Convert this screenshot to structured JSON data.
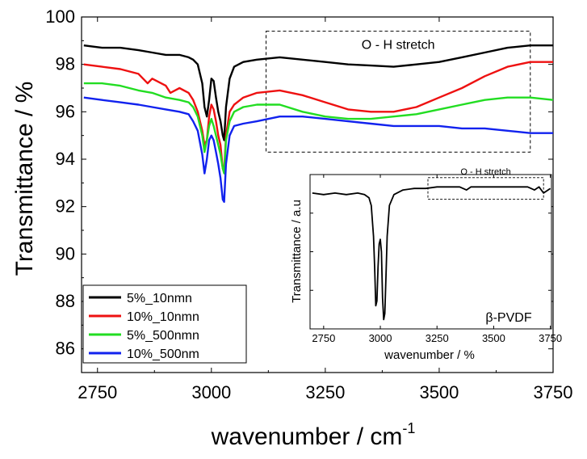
{
  "chart_data": [
    {
      "type": "line",
      "id": "main",
      "title": "",
      "xlabel": "wavenumber / cm",
      "xlabel_superscript": "-1",
      "ylabel": "Transmittance / %",
      "xlim": [
        2715,
        3750
      ],
      "ylim": [
        85,
        100
      ],
      "xticks": [
        "2750",
        "3000",
        "3250",
        "3500",
        "3750"
      ],
      "yticks": [
        "86",
        "88",
        "90",
        "92",
        "94",
        "96",
        "98",
        "100"
      ],
      "legend_position": "bottom-left",
      "annotation": {
        "text": "O - H stretch",
        "region_x": [
          3120,
          3700
        ],
        "region_y": [
          94.3,
          99.4
        ]
      },
      "series": [
        {
          "name": "5%_10nmn",
          "color": "#000000",
          "x": [
            2720,
            2760,
            2800,
            2840,
            2870,
            2900,
            2930,
            2950,
            2960,
            2970,
            2980,
            2985,
            2990,
            2995,
            3000,
            3005,
            3010,
            3015,
            3020,
            3025,
            3028,
            3032,
            3040,
            3050,
            3070,
            3100,
            3150,
            3200,
            3250,
            3300,
            3350,
            3400,
            3450,
            3500,
            3550,
            3600,
            3650,
            3700,
            3750
          ],
          "y": [
            98.8,
            98.7,
            98.7,
            98.6,
            98.5,
            98.4,
            98.4,
            98.3,
            98.2,
            98.0,
            97.2,
            96.2,
            95.8,
            96.5,
            97.4,
            97.3,
            96.6,
            96.0,
            95.6,
            95.0,
            94.8,
            96.2,
            97.4,
            97.9,
            98.1,
            98.2,
            98.3,
            98.2,
            98.1,
            98.0,
            97.95,
            97.9,
            98.0,
            98.1,
            98.3,
            98.5,
            98.7,
            98.8,
            98.8
          ]
        },
        {
          "name": "10%_10nmn",
          "color": "#ee1111",
          "x": [
            2720,
            2760,
            2800,
            2840,
            2850,
            2860,
            2870,
            2900,
            2910,
            2920,
            2930,
            2950,
            2960,
            2970,
            2980,
            2985,
            2990,
            2995,
            3000,
            3005,
            3010,
            3015,
            3020,
            3025,
            3028,
            3032,
            3040,
            3050,
            3070,
            3100,
            3150,
            3200,
            3250,
            3300,
            3350,
            3400,
            3450,
            3500,
            3550,
            3600,
            3650,
            3700,
            3750
          ],
          "y": [
            98.0,
            97.9,
            97.8,
            97.6,
            97.4,
            97.2,
            97.4,
            97.1,
            96.8,
            96.9,
            97.0,
            96.8,
            96.5,
            96.0,
            95.2,
            94.6,
            94.8,
            95.8,
            96.3,
            96.1,
            95.6,
            95.0,
            94.6,
            93.6,
            93.5,
            95.0,
            96.0,
            96.3,
            96.6,
            96.8,
            96.9,
            96.7,
            96.4,
            96.1,
            96.0,
            96.0,
            96.2,
            96.6,
            97.0,
            97.5,
            97.9,
            98.1,
            98.1
          ]
        },
        {
          "name": "5%_500nmn",
          "color": "#22dd22",
          "x": [
            2720,
            2760,
            2800,
            2840,
            2870,
            2900,
            2930,
            2950,
            2960,
            2970,
            2980,
            2985,
            2990,
            2995,
            3000,
            3005,
            3010,
            3015,
            3020,
            3025,
            3028,
            3032,
            3040,
            3050,
            3070,
            3100,
            3150,
            3200,
            3250,
            3300,
            3350,
            3400,
            3450,
            3500,
            3550,
            3600,
            3650,
            3700,
            3750
          ],
          "y": [
            97.2,
            97.2,
            97.1,
            96.9,
            96.8,
            96.6,
            96.5,
            96.4,
            96.2,
            95.8,
            95.0,
            94.3,
            94.8,
            95.4,
            95.7,
            95.4,
            95.0,
            94.6,
            94.2,
            93.6,
            93.4,
            94.8,
            95.6,
            96.0,
            96.2,
            96.3,
            96.3,
            96.0,
            95.8,
            95.7,
            95.7,
            95.8,
            95.9,
            96.1,
            96.3,
            96.5,
            96.6,
            96.6,
            96.5
          ]
        },
        {
          "name": "10%_500nm",
          "color": "#1122ee",
          "x": [
            2720,
            2760,
            2800,
            2840,
            2870,
            2900,
            2930,
            2950,
            2960,
            2970,
            2980,
            2985,
            2990,
            2995,
            3000,
            3005,
            3010,
            3015,
            3020,
            3025,
            3028,
            3032,
            3040,
            3050,
            3070,
            3100,
            3150,
            3200,
            3250,
            3300,
            3350,
            3400,
            3450,
            3500,
            3550,
            3600,
            3650,
            3700,
            3750
          ],
          "y": [
            96.6,
            96.5,
            96.4,
            96.3,
            96.2,
            96.1,
            96.0,
            95.9,
            95.6,
            95.2,
            94.2,
            93.4,
            94.0,
            94.8,
            95.0,
            94.8,
            94.3,
            93.8,
            93.2,
            92.3,
            92.2,
            93.8,
            95.0,
            95.4,
            95.5,
            95.6,
            95.8,
            95.8,
            95.7,
            95.6,
            95.5,
            95.4,
            95.4,
            95.4,
            95.3,
            95.3,
            95.2,
            95.1,
            95.1
          ]
        }
      ]
    },
    {
      "type": "line",
      "id": "inset",
      "title": "",
      "xlabel": "wavenumber / %",
      "ylabel": "Transmittance / a.u",
      "xlim": [
        2690,
        3755
      ],
      "ylim": [
        0,
        1
      ],
      "xticks": [
        "2750",
        "3000",
        "3250",
        "3500",
        "3750"
      ],
      "annotation": {
        "text": "O - H stretch",
        "region_x": [
          3210,
          3720
        ],
        "region_y": [
          0.84,
          0.98
        ]
      },
      "label": "β-PVDF",
      "series": [
        {
          "color": "#000000",
          "x": [
            2700,
            2750,
            2800,
            2850,
            2900,
            2930,
            2950,
            2960,
            2970,
            2975,
            2980,
            2985,
            2990,
            2995,
            3000,
            3005,
            3010,
            3015,
            3020,
            3025,
            3030,
            3040,
            3060,
            3100,
            3150,
            3200,
            3250,
            3300,
            3350,
            3380,
            3400,
            3450,
            3500,
            3550,
            3600,
            3650,
            3680,
            3700,
            3720,
            3750
          ],
          "y": [
            0.88,
            0.87,
            0.88,
            0.87,
            0.88,
            0.87,
            0.85,
            0.8,
            0.6,
            0.4,
            0.15,
            0.18,
            0.4,
            0.55,
            0.58,
            0.5,
            0.2,
            0.06,
            0.1,
            0.35,
            0.6,
            0.8,
            0.87,
            0.9,
            0.91,
            0.91,
            0.92,
            0.92,
            0.92,
            0.9,
            0.92,
            0.92,
            0.92,
            0.92,
            0.92,
            0.92,
            0.9,
            0.92,
            0.88,
            0.91
          ]
        }
      ]
    }
  ]
}
